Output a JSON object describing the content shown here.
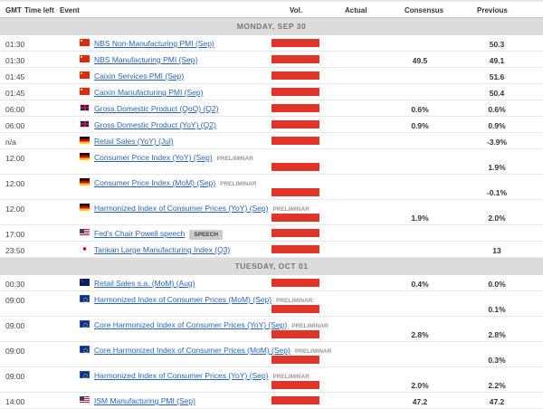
{
  "columns": {
    "gmt": "GMT",
    "time_left": "Time left",
    "event": "Event",
    "vol": "Vol.",
    "actual": "Actual",
    "consensus": "Consensus",
    "previous": "Previous"
  },
  "colors": {
    "volatility_high": "#e0342a",
    "link": "#2a64b8",
    "day_header_bg": "#dcdcdc"
  },
  "days": [
    {
      "label": "MONDAY, SEP 30",
      "events": [
        {
          "time": "01:30",
          "flag": "cn",
          "event": "NBS Non-Manufacturing PMI (Sep)",
          "tag": "",
          "consensus": "",
          "previous": "50.3",
          "tall": false
        },
        {
          "time": "01:30",
          "flag": "cn",
          "event": "NBS Manufacturing PMI (Sep)",
          "tag": "",
          "consensus": "49.5",
          "previous": "49.1",
          "tall": false
        },
        {
          "time": "01:45",
          "flag": "cn",
          "event": "Caixin Services PMI (Sep)",
          "tag": "",
          "consensus": "",
          "previous": "51.6",
          "tall": false
        },
        {
          "time": "01:45",
          "flag": "cn",
          "event": "Caixin Manufacturing PMI (Sep)",
          "tag": "",
          "consensus": "",
          "previous": "50.4",
          "tall": false
        },
        {
          "time": "06:00",
          "flag": "uk",
          "event": "Gross Domestic Product (QoQ) (Q2)",
          "tag": "",
          "consensus": "0.6%",
          "previous": "0.6%",
          "tall": false
        },
        {
          "time": "06:00",
          "flag": "uk",
          "event": "Gross Domestic Product (YoY) (Q2)",
          "tag": "",
          "consensus": "0.9%",
          "previous": "0.9%",
          "tall": false
        },
        {
          "time": "n/a",
          "flag": "de",
          "event": "Retail Sales (YoY) (Jul)",
          "tag": "",
          "consensus": "",
          "previous": "-3.9%",
          "tall": false
        },
        {
          "time": "12:00",
          "flag": "de",
          "event": "Consumer Price Index (YoY) (Sep)",
          "tag": "PRELIMINAR",
          "consensus": "",
          "previous": "1.9%",
          "tall": true
        },
        {
          "time": "12:00",
          "flag": "de",
          "event": "Consumer Price Index (MoM) (Sep)",
          "tag": "PRELIMINAR",
          "consensus": "",
          "previous": "-0.1%",
          "tall": true
        },
        {
          "time": "12:00",
          "flag": "de",
          "event": "Harmonized Index of Consumer Prices (YoY) (Sep)",
          "tag": "PRELIMINAR",
          "consensus": "1.9%",
          "previous": "2.0%",
          "tall": true
        },
        {
          "time": "17:00",
          "flag": "us",
          "event": "Fed's Chair Powell speech",
          "tag": "SPEECH",
          "consensus": "",
          "previous": "",
          "tall": false
        },
        {
          "time": "23:50",
          "flag": "jp",
          "event": "Tankan Large Manufacturing Index (Q3)",
          "tag": "",
          "consensus": "",
          "previous": "13",
          "tall": false
        }
      ]
    },
    {
      "label": "TUESDAY, OCT 01",
      "events": [
        {
          "time": "00:30",
          "flag": "au",
          "event": "Retail Sales s.a. (MoM) (Aug)",
          "tag": "",
          "consensus": "0.4%",
          "previous": "0.0%",
          "tall": false
        },
        {
          "time": "09:00",
          "flag": "eu",
          "event": "Harmonized Index of Consumer Prices (MoM) (Sep)",
          "tag": "PRELIMINAR",
          "consensus": "",
          "previous": "0.1%",
          "tall": true
        },
        {
          "time": "09:00",
          "flag": "eu",
          "event": "Core Harmonized Index of Consumer Prices (YoY) (Sep)",
          "tag": "PRELIMINAR",
          "consensus": "2.8%",
          "previous": "2.8%",
          "tall": true
        },
        {
          "time": "09:00",
          "flag": "eu",
          "event": "Core Harmonized Index of Consumer Prices (MoM) (Sep)",
          "tag": "PRELIMINAR",
          "consensus": "",
          "previous": "0.3%",
          "tall": true
        },
        {
          "time": "09:00",
          "flag": "eu",
          "event": "Harmonized Index of Consumer Prices (YoY) (Sep)",
          "tag": "PRELIMINAR",
          "consensus": "2.0%",
          "previous": "2.2%",
          "tall": true
        },
        {
          "time": "14:00",
          "flag": "us",
          "event": "ISM Manufacturing PMI (Sep)",
          "tag": "",
          "consensus": "47.2",
          "previous": "47.2",
          "tall": false
        }
      ]
    }
  ]
}
